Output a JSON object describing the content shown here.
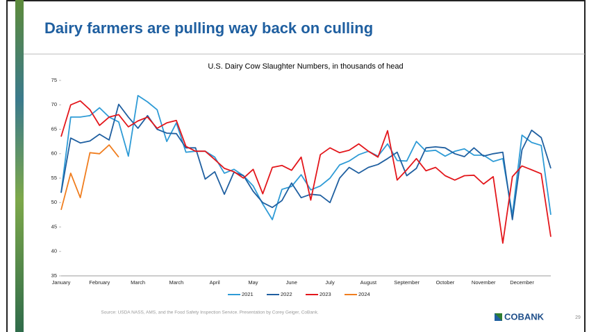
{
  "slide": {
    "title": "Dairy farmers are pulling way back on culling",
    "source": "Source: USDA NASS, AMS, and the Food Safety Inspection Service. Presentation by Corey Geiger, CoBank.",
    "logo": "COBANK",
    "page_number": "29"
  },
  "chart_data": {
    "type": "line",
    "title": "U.S. Dairy Cow Slaughter Numbers, in thousands of head",
    "categories": [
      "January",
      null,
      null,
      null,
      "February",
      null,
      null,
      null,
      "March",
      null,
      null,
      null,
      "March",
      null,
      null,
      null,
      "April",
      null,
      null,
      null,
      "May",
      null,
      null,
      null,
      "June",
      null,
      null,
      null,
      "July",
      null,
      null,
      null,
      "August",
      null,
      null,
      null,
      "September",
      null,
      null,
      null,
      "October",
      null,
      null,
      null,
      "November",
      null,
      null,
      null,
      "December",
      null,
      null,
      null
    ],
    "series": [
      {
        "name": "2021",
        "color": "#2e9bd6",
        "values": [
          52,
          67.5,
          67.5,
          67.8,
          69.4,
          67.5,
          66.5,
          59.5,
          71.9,
          70.6,
          69,
          62.5,
          66.3,
          60.3,
          60.5,
          60.5,
          59.3,
          56,
          56.8,
          55.5,
          53.4,
          49.7,
          46.5,
          52.7,
          53.3,
          55.7,
          52.6,
          53.4,
          55,
          57.7,
          58.5,
          59.8,
          60.5,
          59.5,
          62,
          58.6,
          58.5,
          62.5,
          60.5,
          60.7,
          59.5,
          60.5,
          61,
          59.7,
          59.7,
          58.4,
          59,
          47.5,
          63.8,
          62.3,
          61.7,
          47.5
        ]
      },
      {
        "name": "2022",
        "color": "#1f5fa0",
        "values": [
          52,
          63.2,
          62.2,
          62.6,
          64,
          62.8,
          70.1,
          67.5,
          65.2,
          67.8,
          65,
          64.2,
          64.1,
          61.2,
          61.2,
          54.8,
          56.3,
          51.7,
          56.2,
          55.5,
          52.3,
          50,
          49,
          50.4,
          54,
          51,
          51.7,
          51.5,
          50,
          55,
          57.2,
          56,
          57.2,
          57.8,
          59,
          60.3,
          55.5,
          57,
          61.2,
          61.4,
          61.2,
          60,
          59.4,
          61.2,
          59.5,
          60,
          60.3,
          46.5,
          60.8,
          64.8,
          63.3,
          57
        ]
      },
      {
        "name": "2023",
        "color": "#e3161b",
        "values": [
          63.5,
          70,
          70.8,
          69,
          65.8,
          67.5,
          68,
          65.5,
          66.7,
          67.5,
          65.2,
          66.3,
          66.8,
          61.5,
          60.5,
          60.5,
          58.8,
          57,
          56.3,
          55,
          56.8,
          51.8,
          57.2,
          57.6,
          56.6,
          59.3,
          50.5,
          59.8,
          61.2,
          60.2,
          60.7,
          62,
          60.5,
          59.3,
          64.7,
          54.6,
          56.7,
          59,
          56.5,
          57.2,
          55.5,
          54.6,
          55.5,
          55.6,
          53.8,
          55.3,
          41.7,
          55.3,
          57.5,
          56.7,
          55.9,
          43
        ]
      },
      {
        "name": "2024",
        "color": "#f07d1e",
        "values": [
          48.5,
          56,
          51,
          60.2,
          60,
          61.8,
          59.3,
          null,
          null,
          null,
          null,
          null,
          null,
          null,
          null,
          null,
          null,
          null,
          null,
          null,
          null,
          null,
          null,
          null,
          null,
          null,
          null,
          null,
          null,
          null,
          null,
          null,
          null,
          null,
          null,
          null,
          null,
          null,
          null,
          null,
          null,
          null,
          null,
          null,
          null,
          null,
          null,
          null,
          null,
          null,
          null,
          null
        ]
      }
    ],
    "ylim": [
      35,
      75
    ],
    "yticks": [
      35,
      40,
      45,
      50,
      55,
      60,
      65,
      70,
      75
    ],
    "grid": false,
    "legend": "bottom"
  }
}
